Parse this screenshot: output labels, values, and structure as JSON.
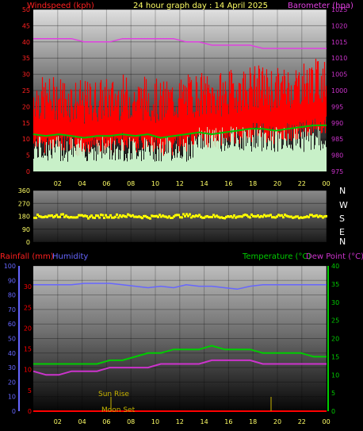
{
  "header": {
    "windspeed_label": "Windspeed (kph)",
    "title": "24 hour graph day : 14 April 2025",
    "barometer_label": "Barometer (hpa)"
  },
  "colors": {
    "wind": "#ff0000",
    "gust": "#ff0000",
    "avg_wind": "#00c000",
    "wind_base": "#c8f0c8",
    "barometer": "#e040e0",
    "direction": "#ffff00",
    "humidity": "#6666ff",
    "temperature": "#00cc00",
    "dewpoint": "#cc33cc",
    "rain": "#ff0000",
    "sun": "#c8b400",
    "left_axis": "#ff2020",
    "right_axis": "#cc33cc",
    "text_default": "#ffffff"
  },
  "chart_data": [
    {
      "type": "line",
      "name": "wind-barometer",
      "x_ticks": [
        "02",
        "04",
        "06",
        "08",
        "10",
        "12",
        "14",
        "16",
        "18",
        "20",
        "22",
        "00"
      ],
      "ylim_left": [
        0,
        50
      ],
      "y_ticks_left": [
        0,
        5,
        10,
        15,
        20,
        25,
        30,
        35,
        40,
        45,
        50
      ],
      "ylim_right": [
        975,
        1025
      ],
      "y_ticks_right": [
        975,
        980,
        985,
        990,
        995,
        1000,
        1005,
        1010,
        1015,
        1020,
        1025
      ],
      "series": [
        {
          "name": "Windspeed (kph)",
          "values": [
            20,
            19,
            20,
            19,
            18,
            19,
            19,
            20,
            19,
            20,
            18,
            19,
            20,
            21,
            20,
            21,
            22,
            23,
            23,
            22,
            23,
            24,
            25,
            25
          ]
        },
        {
          "name": "Barometer (hpa)",
          "values": [
            1016,
            1016,
            1016,
            1016,
            1015,
            1015,
            1015,
            1016,
            1016,
            1016,
            1016,
            1016,
            1015,
            1015,
            1014,
            1014,
            1014,
            1014,
            1013,
            1013,
            1013,
            1013,
            1013,
            1013
          ]
        }
      ]
    },
    {
      "type": "scatter",
      "name": "wind-direction",
      "ylim": [
        0,
        360
      ],
      "y_ticks": [
        0,
        90,
        180,
        270,
        360
      ],
      "compass": [
        "N",
        "W",
        "S",
        "E",
        "N"
      ],
      "values": [
        180,
        180,
        185,
        180,
        175,
        180,
        180,
        185,
        180,
        175,
        180,
        180,
        185,
        180,
        180,
        175,
        180,
        180,
        185,
        180,
        180,
        175,
        180,
        180
      ]
    },
    {
      "type": "line",
      "name": "rain-humidity-temperature",
      "labels": {
        "rainfall": "Rainfall (mm)",
        "humidity": "Humidity",
        "temperature": "Temperature (°C)",
        "dewpoint": "Dew Point (°C)"
      },
      "x_ticks": [
        "02",
        "04",
        "06",
        "08",
        "10",
        "12",
        "14",
        "16",
        "18",
        "20",
        "22",
        "00"
      ],
      "y_ticks_humidity": [
        0,
        10,
        20,
        30,
        40,
        50,
        60,
        70,
        80,
        90,
        100
      ],
      "y_ticks_rain": [
        0,
        5,
        10,
        15,
        20,
        25,
        30
      ],
      "ylim_temperature": [
        0,
        40
      ],
      "y_ticks_temperature": [
        0,
        5,
        10,
        15,
        20,
        25,
        30,
        35,
        40
      ],
      "series": [
        {
          "name": "Humidity",
          "values": [
            87,
            87,
            87,
            87,
            88,
            88,
            88,
            87,
            86,
            85,
            86,
            85,
            87,
            86,
            86,
            85,
            84,
            86,
            87,
            87,
            87,
            87,
            87,
            87
          ]
        },
        {
          "name": "Temperature (°C)",
          "values": [
            13,
            13,
            13,
            13,
            13,
            13,
            14,
            14,
            15,
            16,
            16,
            17,
            17,
            17,
            18,
            17,
            17,
            17,
            16,
            16,
            16,
            16,
            15,
            15
          ]
        },
        {
          "name": "Dew Point (°C)",
          "values": [
            11,
            10,
            10,
            11,
            11,
            11,
            12,
            12,
            12,
            12,
            13,
            13,
            13,
            13,
            14,
            14,
            14,
            14,
            13,
            13,
            13,
            13,
            13,
            13
          ]
        },
        {
          "name": "Rainfall (mm)",
          "values": [
            0,
            0,
            0,
            0,
            0,
            0,
            0,
            0,
            0,
            0,
            0,
            0,
            0,
            0,
            0,
            0,
            0,
            0,
            0,
            0,
            0,
            0,
            0,
            0
          ]
        }
      ],
      "annotations": {
        "sunrise": "Sun Rise",
        "moonset": "Moon Set"
      }
    }
  ]
}
